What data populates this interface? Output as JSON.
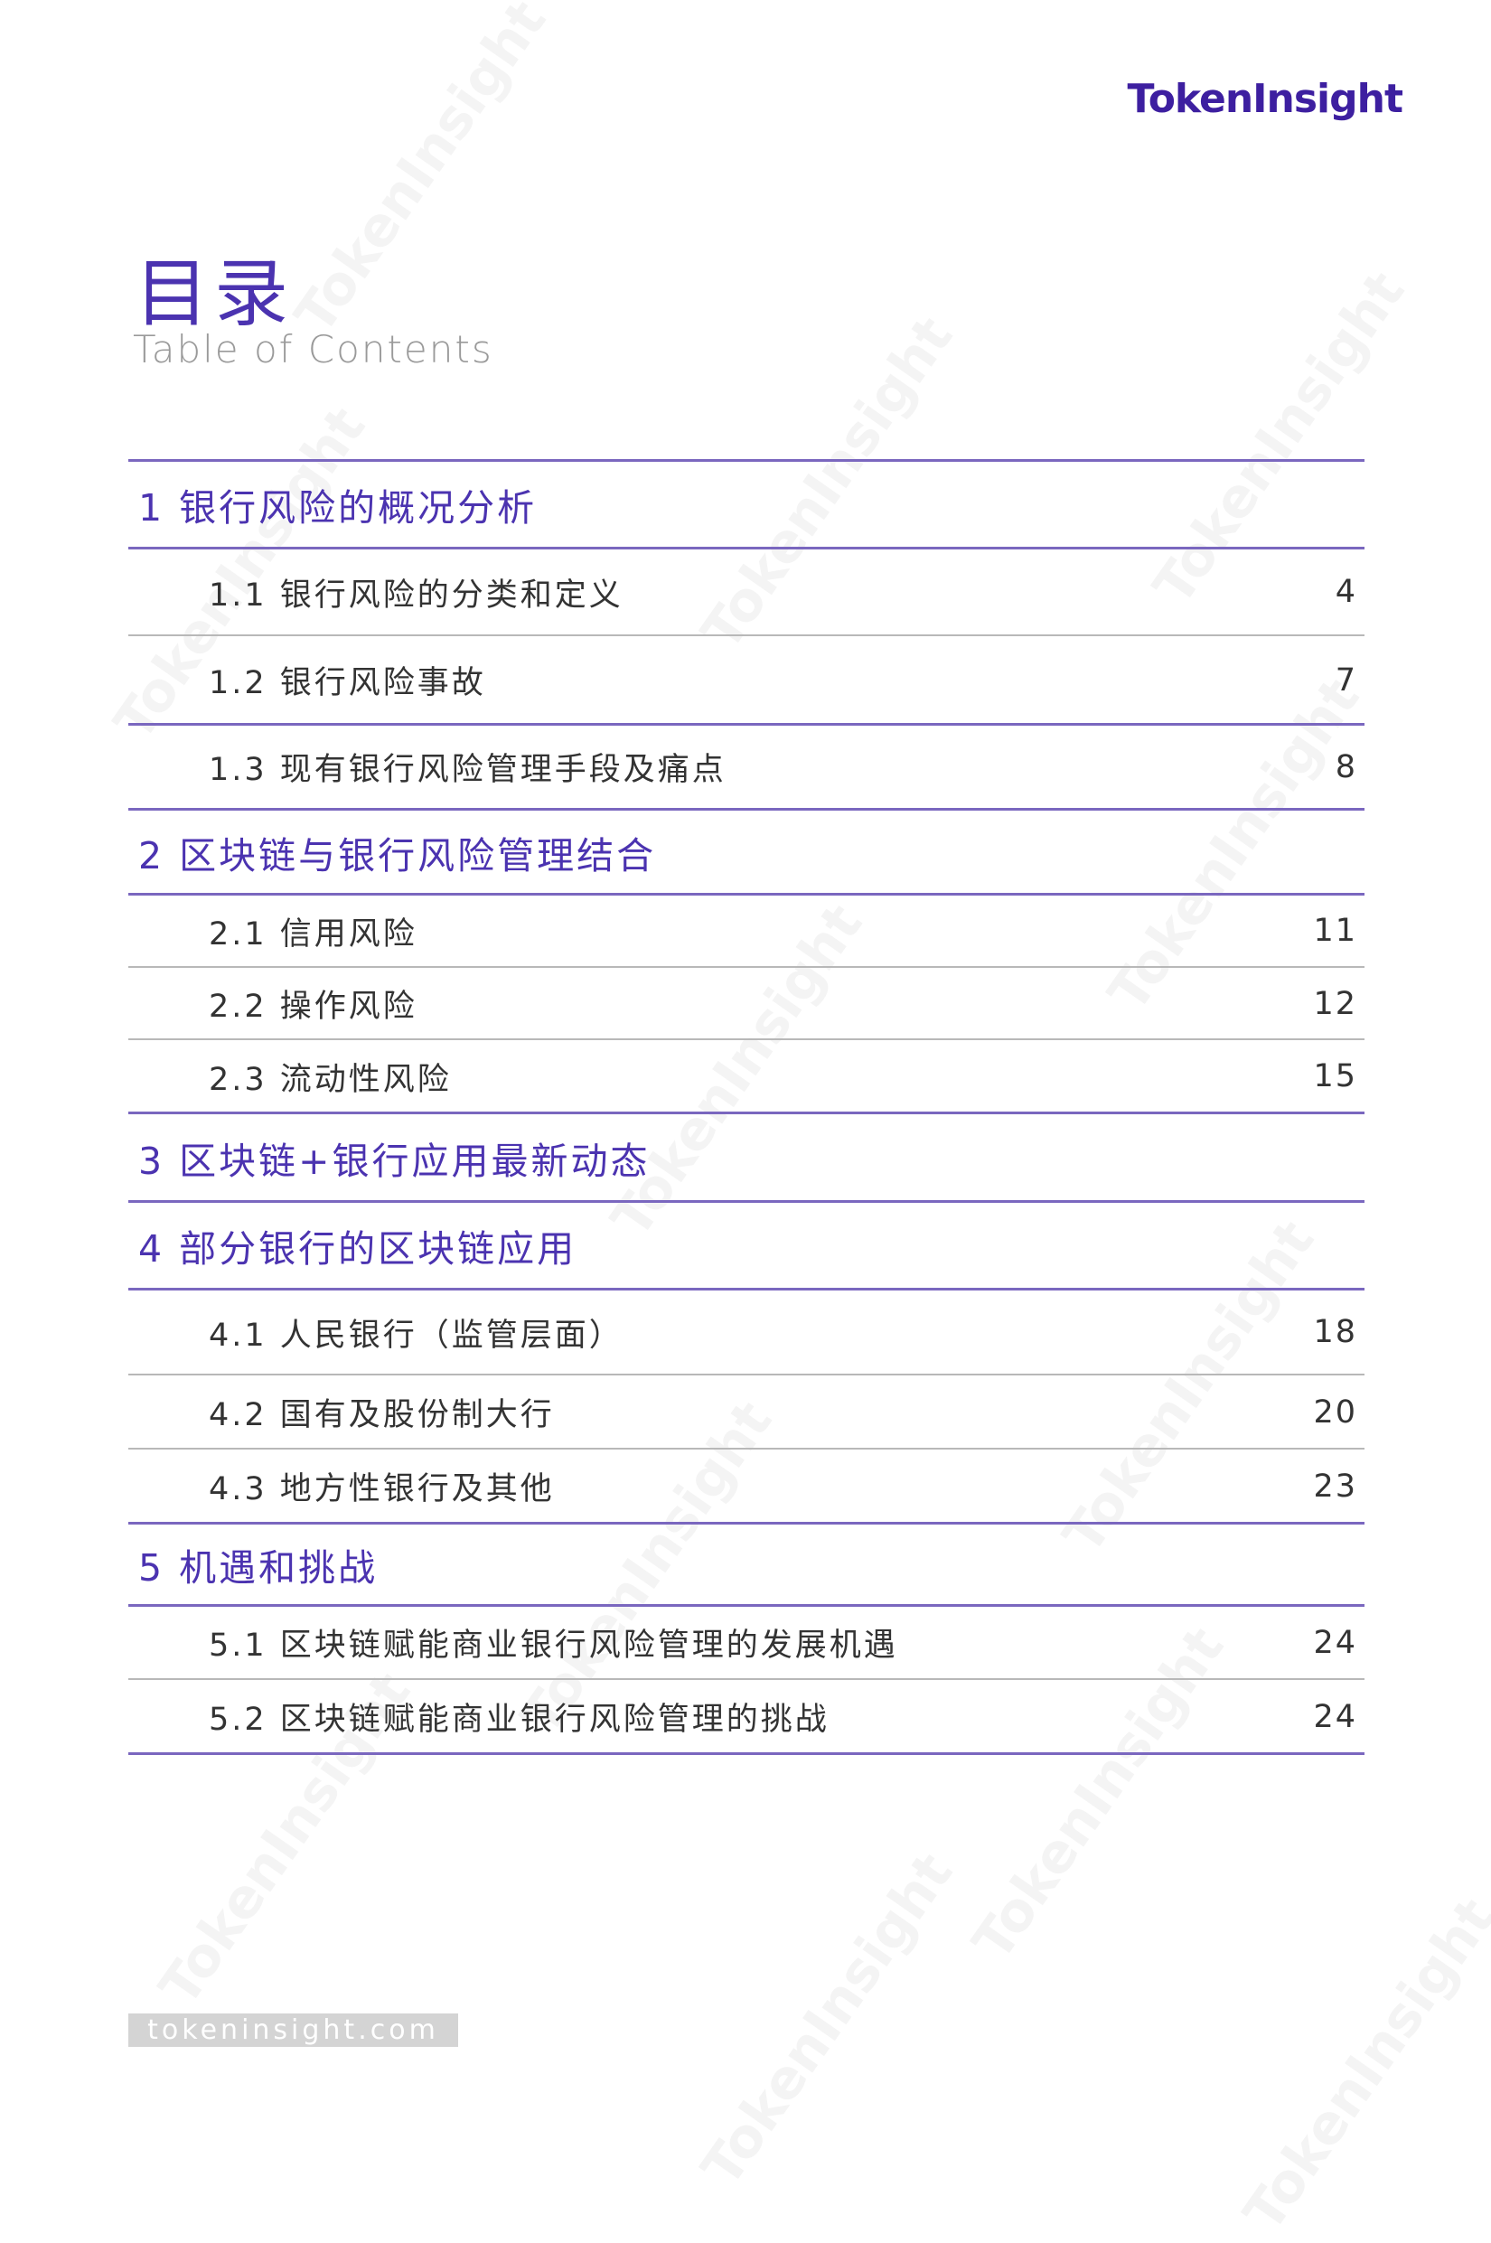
{
  "brand": {
    "logo": "TokenInsight",
    "watermark": "TokenInsight",
    "footer_url": "tokeninsight.com"
  },
  "colors": {
    "accent": "#4b33b0",
    "logo": "#3d1fa0",
    "rule": "#7a67bf"
  },
  "header": {
    "title_cn": "目录",
    "title_en": "Table of Contents"
  },
  "toc": [
    {
      "label": "1 银行风险的概况分析",
      "level": 1
    },
    {
      "label": "1.1 银行风险的分类和定义",
      "page": "4",
      "level": 2
    },
    {
      "label": "1.2 银行风险事故",
      "page": "7",
      "level": 2
    },
    {
      "label": "1.3 现有银行风险管理手段及痛点",
      "page": "8",
      "level": 2
    },
    {
      "label": "2 区块链与银行风险管理结合",
      "level": 1
    },
    {
      "label": "2.1 信用风险",
      "page": "11",
      "level": 2
    },
    {
      "label": "2.2 操作风险",
      "page": "12",
      "level": 2
    },
    {
      "label": "2.3 流动性风险",
      "page": "15",
      "level": 2
    },
    {
      "label": "3 区块链+银行应用最新动态",
      "level": 1
    },
    {
      "label": "4 部分银行的区块链应用",
      "level": 1
    },
    {
      "label": "4.1 人民银行（监管层面）",
      "page": "18",
      "level": 2
    },
    {
      "label": "4.2 国有及股份制大行",
      "page": "20",
      "level": 2
    },
    {
      "label": "4.3 地方性银行及其他",
      "page": "23",
      "level": 2
    },
    {
      "label": "5 机遇和挑战",
      "level": 1
    },
    {
      "label": "5.1 区块链赋能商业银行风险管理的发展机遇",
      "page": "24",
      "level": 2
    },
    {
      "label": "5.2 区块链赋能商业银行风险管理的挑战",
      "page": "24",
      "level": 2
    }
  ]
}
